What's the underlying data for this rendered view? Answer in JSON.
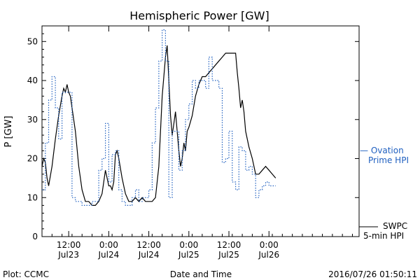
{
  "chart_data": {
    "type": "line",
    "title": "Hemispheric Power [GW]",
    "ylabel": "P [GW]",
    "xlabel": "Date and Time",
    "xlim": [
      "2016-07-22T04:00",
      "2016-07-26T03:00"
    ],
    "ylim": [
      0,
      54
    ],
    "yticks": [
      0,
      10,
      20,
      30,
      40,
      50
    ],
    "xticks": [
      {
        "at": "2016-07-22T12:00",
        "time": "12:00",
        "date": "Jul23"
      },
      {
        "at": "2016-07-23T00:00",
        "time": "0:00",
        "date": "Jul24"
      },
      {
        "at": "2016-07-23T12:00",
        "time": "12:00",
        "date": "Jul24"
      },
      {
        "at": "2016-07-24T00:00",
        "time": "0:00",
        "date": "Jul25"
      },
      {
        "at": "2016-07-24T12:00",
        "time": "12:00",
        "date": "Jul25"
      },
      {
        "at": "2016-07-25T00:00",
        "time": "0:00",
        "date": "Jul26"
      }
    ],
    "grid": false,
    "series": [
      {
        "name": "SWPC 5-min HPI",
        "color": "#000000",
        "style": "solid",
        "points": [
          [
            "2016-07-22T04:00",
            18
          ],
          [
            "2016-07-22T04:30",
            20
          ],
          [
            "2016-07-22T05:00",
            19
          ],
          [
            "2016-07-22T05:30",
            15
          ],
          [
            "2016-07-22T06:00",
            13
          ],
          [
            "2016-07-22T07:00",
            18
          ],
          [
            "2016-07-22T08:00",
            25
          ],
          [
            "2016-07-22T09:00",
            31
          ],
          [
            "2016-07-22T10:00",
            36
          ],
          [
            "2016-07-22T10:30",
            38
          ],
          [
            "2016-07-22T11:00",
            37
          ],
          [
            "2016-07-22T11:30",
            39
          ],
          [
            "2016-07-22T12:00",
            37
          ],
          [
            "2016-07-22T12:30",
            36
          ],
          [
            "2016-07-22T13:00",
            33
          ],
          [
            "2016-07-22T14:00",
            27
          ],
          [
            "2016-07-22T15:00",
            18
          ],
          [
            "2016-07-22T16:00",
            12
          ],
          [
            "2016-07-22T17:00",
            9
          ],
          [
            "2016-07-22T18:00",
            9
          ],
          [
            "2016-07-22T19:00",
            8
          ],
          [
            "2016-07-22T20:00",
            8
          ],
          [
            "2016-07-22T21:00",
            9
          ],
          [
            "2016-07-22T22:00",
            11
          ],
          [
            "2016-07-22T23:00",
            17
          ],
          [
            "2016-07-22T23:30",
            15
          ],
          [
            "2016-07-23T00:00",
            13
          ],
          [
            "2016-07-23T00:30",
            13
          ],
          [
            "2016-07-23T01:00",
            12
          ],
          [
            "2016-07-23T01:30",
            14
          ],
          [
            "2016-07-23T02:00",
            21
          ],
          [
            "2016-07-23T02:30",
            22
          ],
          [
            "2016-07-23T03:00",
            20
          ],
          [
            "2016-07-23T04:00",
            15
          ],
          [
            "2016-07-23T05:00",
            11
          ],
          [
            "2016-07-23T06:00",
            9
          ],
          [
            "2016-07-23T07:00",
            9
          ],
          [
            "2016-07-23T08:00",
            10
          ],
          [
            "2016-07-23T09:00",
            9
          ],
          [
            "2016-07-23T10:00",
            10
          ],
          [
            "2016-07-23T11:00",
            9
          ],
          [
            "2016-07-23T12:00",
            9
          ],
          [
            "2016-07-23T13:00",
            9
          ],
          [
            "2016-07-23T14:00",
            10
          ],
          [
            "2016-07-23T15:00",
            18
          ],
          [
            "2016-07-23T16:00",
            36
          ],
          [
            "2016-07-23T17:00",
            46
          ],
          [
            "2016-07-23T17:30",
            49
          ],
          [
            "2016-07-23T18:00",
            40
          ],
          [
            "2016-07-23T18:30",
            31
          ],
          [
            "2016-07-23T19:00",
            26
          ],
          [
            "2016-07-23T19:30",
            29
          ],
          [
            "2016-07-23T20:00",
            32
          ],
          [
            "2016-07-23T20:30",
            27
          ],
          [
            "2016-07-23T21:00",
            22
          ],
          [
            "2016-07-23T21:30",
            18
          ],
          [
            "2016-07-23T22:00",
            20
          ],
          [
            "2016-07-23T22:30",
            24
          ],
          [
            "2016-07-23T23:00",
            22
          ],
          [
            "2016-07-23T23:30",
            27
          ],
          [
            "2016-07-24T00:00",
            28
          ],
          [
            "2016-07-24T01:00",
            31
          ],
          [
            "2016-07-24T02:00",
            36
          ],
          [
            "2016-07-24T03:00",
            39
          ],
          [
            "2016-07-24T04:00",
            41
          ],
          [
            "2016-07-24T05:00",
            41
          ],
          [
            "2016-07-24T06:00",
            42
          ],
          [
            "2016-07-24T07:00",
            43
          ],
          [
            "2016-07-24T08:00",
            44
          ],
          [
            "2016-07-24T09:00",
            45
          ],
          [
            "2016-07-24T10:00",
            46
          ],
          [
            "2016-07-24T11:00",
            47
          ],
          [
            "2016-07-24T12:00",
            47
          ],
          [
            "2016-07-24T13:00",
            47
          ],
          [
            "2016-07-24T14:00",
            47
          ],
          [
            "2016-07-24T14:30",
            42
          ],
          [
            "2016-07-24T15:00",
            38
          ],
          [
            "2016-07-24T15:30",
            33
          ],
          [
            "2016-07-24T16:00",
            35
          ],
          [
            "2016-07-24T16:30",
            32
          ],
          [
            "2016-07-24T17:00",
            27
          ],
          [
            "2016-07-24T18:00",
            23
          ],
          [
            "2016-07-24T19:00",
            20
          ],
          [
            "2016-07-24T20:00",
            16
          ],
          [
            "2016-07-24T21:00",
            16
          ],
          [
            "2016-07-24T22:00",
            17
          ],
          [
            "2016-07-24T23:00",
            18
          ],
          [
            "2016-07-25T00:00",
            17
          ],
          [
            "2016-07-25T01:00",
            16
          ],
          [
            "2016-07-25T02:00",
            15
          ]
        ]
      },
      {
        "name": "Ovation Prime HPI",
        "color": "#2060c0",
        "style": "dotted-step",
        "points": [
          [
            "2016-07-22T04:00",
            12
          ],
          [
            "2016-07-22T05:00",
            24
          ],
          [
            "2016-07-22T06:00",
            35
          ],
          [
            "2016-07-22T07:00",
            41
          ],
          [
            "2016-07-22T08:00",
            33
          ],
          [
            "2016-07-22T09:00",
            25
          ],
          [
            "2016-07-22T10:00",
            37
          ],
          [
            "2016-07-22T11:00",
            37
          ],
          [
            "2016-07-22T12:00",
            37
          ],
          [
            "2016-07-22T13:00",
            10
          ],
          [
            "2016-07-22T14:00",
            9
          ],
          [
            "2016-07-22T15:00",
            9
          ],
          [
            "2016-07-22T16:00",
            8
          ],
          [
            "2016-07-22T17:00",
            8
          ],
          [
            "2016-07-22T18:00",
            8
          ],
          [
            "2016-07-22T19:00",
            9
          ],
          [
            "2016-07-22T20:00",
            9
          ],
          [
            "2016-07-22T21:00",
            17
          ],
          [
            "2016-07-22T22:00",
            20
          ],
          [
            "2016-07-22T23:00",
            29
          ],
          [
            "2016-07-23T00:00",
            14
          ],
          [
            "2016-07-23T01:00",
            21
          ],
          [
            "2016-07-23T02:00",
            22
          ],
          [
            "2016-07-23T03:00",
            12
          ],
          [
            "2016-07-23T04:00",
            9
          ],
          [
            "2016-07-23T05:00",
            8
          ],
          [
            "2016-07-23T06:00",
            8
          ],
          [
            "2016-07-23T07:00",
            10
          ],
          [
            "2016-07-23T08:00",
            12
          ],
          [
            "2016-07-23T09:00",
            9
          ],
          [
            "2016-07-23T10:00",
            10
          ],
          [
            "2016-07-23T11:00",
            10
          ],
          [
            "2016-07-23T12:00",
            12
          ],
          [
            "2016-07-23T13:00",
            24
          ],
          [
            "2016-07-23T14:00",
            33
          ],
          [
            "2016-07-23T15:00",
            45
          ],
          [
            "2016-07-23T16:00",
            53
          ],
          [
            "2016-07-23T17:00",
            45
          ],
          [
            "2016-07-23T18:00",
            10
          ],
          [
            "2016-07-23T19:00",
            27
          ],
          [
            "2016-07-23T20:00",
            27
          ],
          [
            "2016-07-23T21:00",
            17
          ],
          [
            "2016-07-23T22:00",
            22
          ],
          [
            "2016-07-23T23:00",
            30
          ],
          [
            "2016-07-24T00:00",
            34
          ],
          [
            "2016-07-24T01:00",
            40
          ],
          [
            "2016-07-24T02:00",
            38
          ],
          [
            "2016-07-24T03:00",
            40
          ],
          [
            "2016-07-24T04:00",
            40
          ],
          [
            "2016-07-24T05:00",
            38
          ],
          [
            "2016-07-24T06:00",
            46
          ],
          [
            "2016-07-24T07:00",
            40
          ],
          [
            "2016-07-24T08:00",
            40
          ],
          [
            "2016-07-24T09:00",
            38
          ],
          [
            "2016-07-24T10:00",
            19
          ],
          [
            "2016-07-24T11:00",
            20
          ],
          [
            "2016-07-24T12:00",
            27
          ],
          [
            "2016-07-24T13:00",
            14
          ],
          [
            "2016-07-24T14:00",
            12
          ],
          [
            "2016-07-24T15:00",
            23
          ],
          [
            "2016-07-24T16:00",
            22
          ],
          [
            "2016-07-24T17:00",
            17
          ],
          [
            "2016-07-24T18:00",
            18
          ],
          [
            "2016-07-24T19:00",
            16
          ],
          [
            "2016-07-24T20:00",
            10
          ],
          [
            "2016-07-24T21:00",
            12
          ],
          [
            "2016-07-24T22:00",
            13
          ],
          [
            "2016-07-24T23:00",
            14
          ],
          [
            "2016-07-25T00:00",
            13
          ],
          [
            "2016-07-25T01:00",
            13
          ],
          [
            "2016-07-25T02:00",
            13
          ]
        ]
      }
    ]
  },
  "legend": {
    "ovation_line1": "— Ovation",
    "ovation_line2": "Prime HPI",
    "swpc_line1": "SWPC",
    "swpc_line2": "5-min HPI"
  },
  "footer": {
    "left": "Plot: CCMC",
    "center": "Date and Time",
    "right": "2016/07/26 01:50:11"
  },
  "colors": {
    "accent_blue": "#2060c0",
    "line_black": "#000000"
  }
}
